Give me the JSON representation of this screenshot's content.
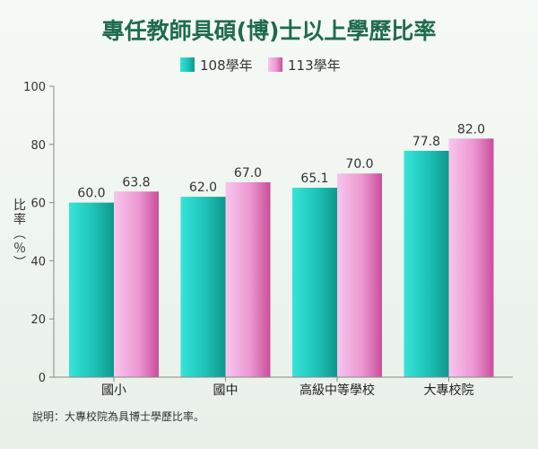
{
  "chart_data": {
    "type": "bar",
    "title": "專任教師具碩(博)士以上學歷比率",
    "ylabel_chars": [
      "比",
      "率",
      "︵",
      "％",
      "︶"
    ],
    "ylim": [
      0,
      100
    ],
    "yticks": [
      "0",
      "20",
      "40",
      "60",
      "80",
      "100"
    ],
    "ytick_values": [
      0,
      20,
      40,
      60,
      80,
      100
    ],
    "categories": [
      "國小",
      "國中",
      "高級中等學校",
      "大專校院"
    ],
    "series": [
      {
        "name": "108學年",
        "values": [
          60.0,
          62.0,
          65.1,
          77.8
        ],
        "labels": [
          "60.0",
          "62.0",
          "65.1",
          "77.8"
        ],
        "color": "#1cc4b8"
      },
      {
        "name": "113學年",
        "values": [
          63.8,
          67.0,
          70.0,
          82.0
        ],
        "labels": [
          "63.8",
          "67.0",
          "70.0",
          "82.0"
        ],
        "color": "#e68ccc"
      }
    ],
    "note": "說明：大專校院為具博士學歷比率。",
    "grid": false,
    "legend_position": "top-center"
  }
}
